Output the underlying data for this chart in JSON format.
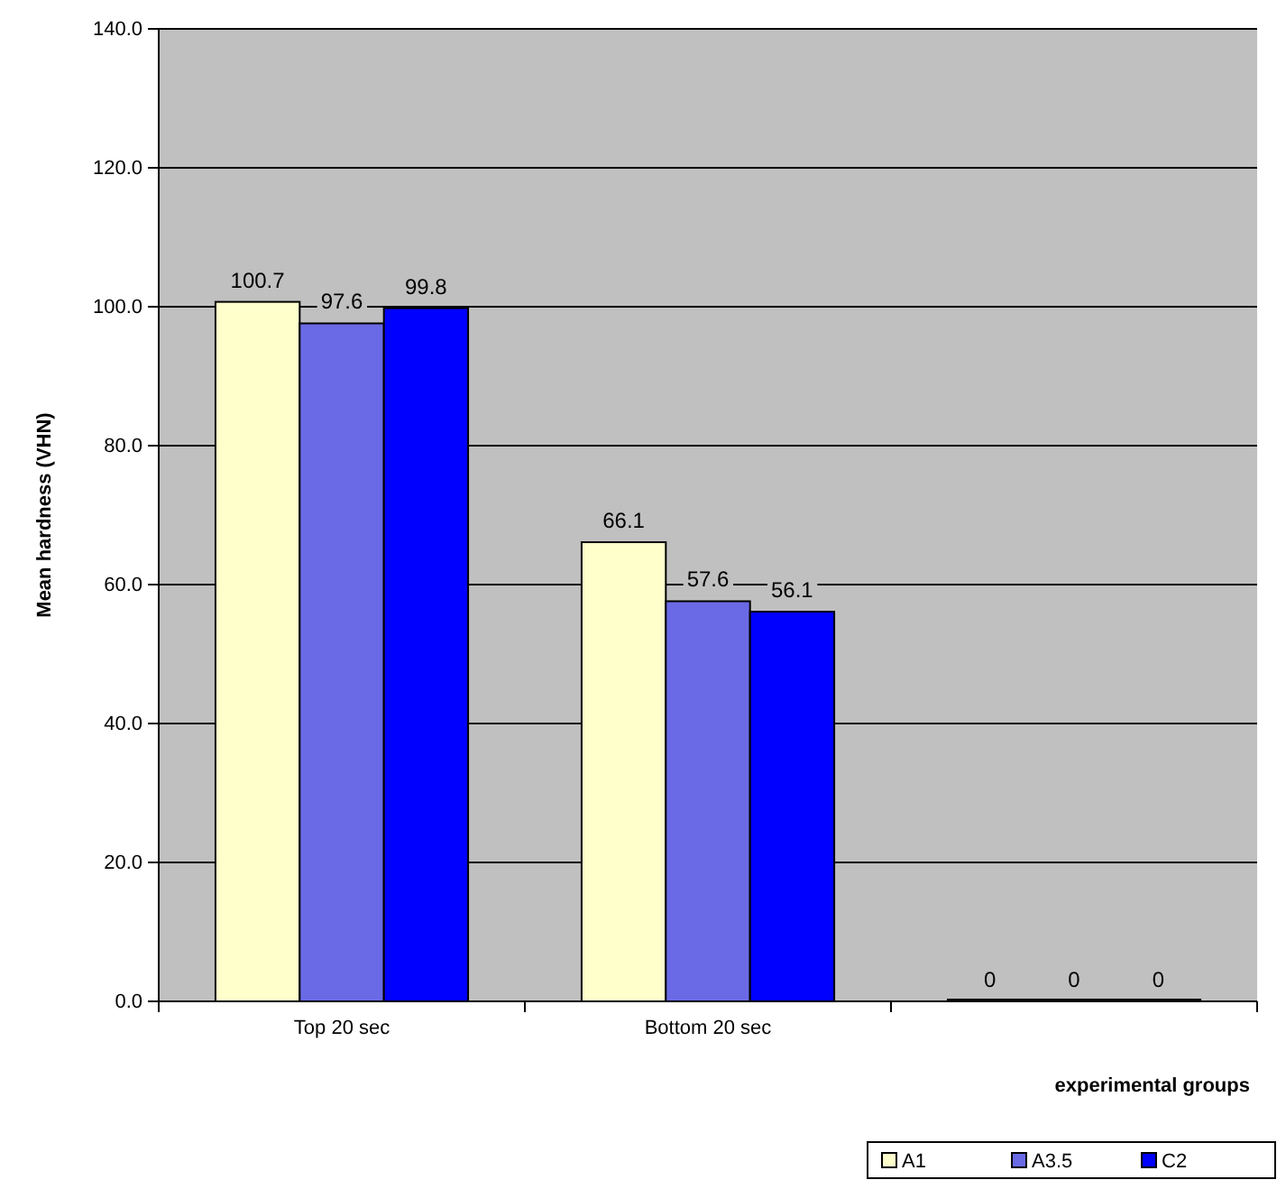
{
  "chart_data": {
    "type": "bar",
    "xlabel": "experimental groups",
    "ylabel": "Mean hardness (VHN)",
    "categories": [
      "Top 20 sec",
      "Bottom 20 sec",
      null
    ],
    "series": [
      {
        "name": "A1",
        "color": "#ffffcc",
        "values": [
          100.7,
          66.1,
          0
        ]
      },
      {
        "name": "A3.5",
        "color": "#6a6ae6",
        "values": [
          97.6,
          57.6,
          0
        ]
      },
      {
        "name": "C2",
        "color": "#0000ff",
        "values": [
          99.8,
          56.1,
          0
        ]
      }
    ],
    "ylim": [
      0,
      140
    ],
    "yticks": [
      {
        "value": 0,
        "label": "0.0"
      },
      {
        "value": 20,
        "label": "20.0"
      },
      {
        "value": 40,
        "label": "40.0"
      },
      {
        "value": 60,
        "label": "60.0"
      },
      {
        "value": 80,
        "label": "80.0"
      },
      {
        "value": 100,
        "label": "100.0"
      },
      {
        "value": 120,
        "label": "120.0"
      },
      {
        "value": 140,
        "label": "140.0"
      }
    ],
    "grid": "y",
    "legend": "bottom right",
    "data_labels": true
  }
}
